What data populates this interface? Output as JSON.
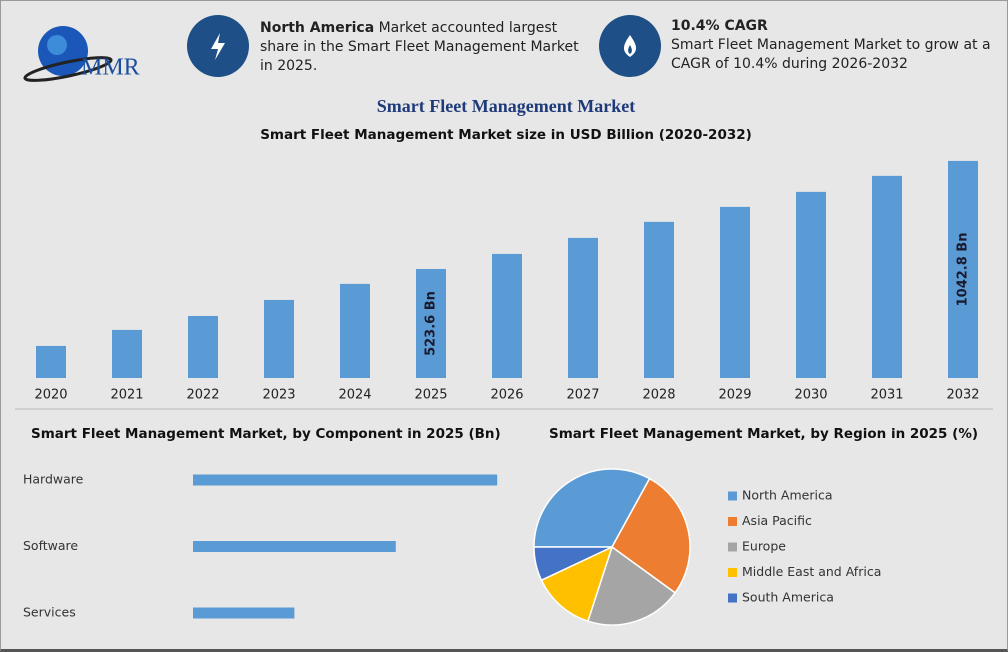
{
  "header": {
    "logo": "MMR",
    "highlight_1": {
      "bold": "North America",
      "text": "Market accounted largest share in the Smart Fleet Management Market in 2025."
    },
    "highlight_2": {
      "title": "10.4% CAGR",
      "text": "Smart Fleet Management Market to grow at a CAGR of 10.4% during 2026-2032"
    }
  },
  "chart_data": [
    {
      "type": "bar",
      "title": "Smart Fleet Management Market",
      "subtitle": "Smart Fleet Management Market size in USD Billion (2020-2032)",
      "categories": [
        "2020",
        "2021",
        "2022",
        "2023",
        "2024",
        "2025",
        "2026",
        "2027",
        "2028",
        "2029",
        "2030",
        "2031",
        "2032"
      ],
      "values": [
        154,
        231,
        298,
        375,
        452,
        523.6,
        596,
        673,
        750,
        822,
        894,
        971,
        1042.8
      ],
      "value_labels": [
        null,
        null,
        null,
        null,
        null,
        "523.6 Bn",
        null,
        null,
        null,
        null,
        null,
        null,
        "1042.8 Bn"
      ],
      "color": "#5b9bd5",
      "ylim": [
        0,
        1100
      ]
    },
    {
      "type": "bar",
      "orientation": "horizontal",
      "title": "Smart Fleet Management Market, by Component in 2025 (Bn)",
      "categories": [
        "Hardware",
        "Software",
        "Services"
      ],
      "values": [
        90,
        60,
        30
      ],
      "color": "#5b9bd5",
      "xlim": [
        0,
        100
      ]
    },
    {
      "type": "pie",
      "title": "Smart Fleet Management Market, by Region in 2025 (%)",
      "categories": [
        "North America",
        "Asia Pacific",
        "Europe",
        "Middle East and Africa",
        "South America"
      ],
      "values": [
        33,
        27,
        20,
        13,
        7
      ],
      "colors": [
        "#5b9bd5",
        "#ed7d31",
        "#a5a5a5",
        "#ffc000",
        "#4472c4"
      ]
    }
  ]
}
